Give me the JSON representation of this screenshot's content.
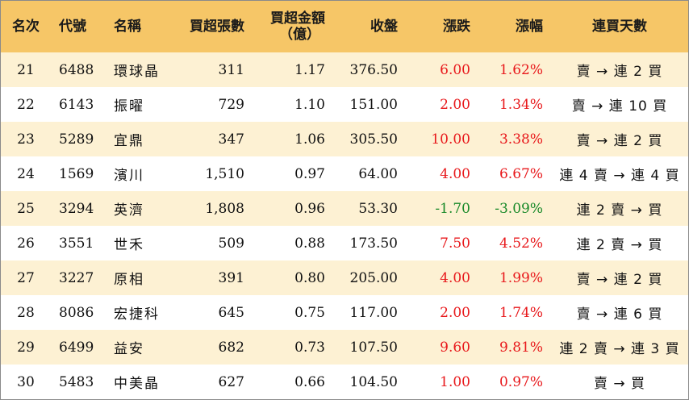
{
  "headers": {
    "rank": "名次",
    "code": "代號",
    "name": "名稱",
    "net_buy_lots": "買超張數",
    "net_buy_amount_line1": "買超金額",
    "net_buy_amount_line2": "（億）",
    "close": "收盤",
    "change": "漲跌",
    "change_pct": "漲幅",
    "consecutive_days": "連買天數"
  },
  "colors": {
    "header_bg": "#f6c667",
    "alt_row_bg": "#fdf1d3",
    "up": "#e8191c",
    "down": "#1a8a2a"
  },
  "rows": [
    {
      "rank": "21",
      "code": "6488",
      "name": "環球晶",
      "lots": "311",
      "amount": "1.17",
      "close": "376.50",
      "change": "6.00",
      "pct": "1.62%",
      "trend": "up",
      "days": "賣 → 連 2 買"
    },
    {
      "rank": "22",
      "code": "6143",
      "name": "振曜",
      "lots": "729",
      "amount": "1.10",
      "close": "151.00",
      "change": "2.00",
      "pct": "1.34%",
      "trend": "up",
      "days": "賣 → 連 10 買"
    },
    {
      "rank": "23",
      "code": "5289",
      "name": "宜鼎",
      "lots": "347",
      "amount": "1.06",
      "close": "305.50",
      "change": "10.00",
      "pct": "3.38%",
      "trend": "up",
      "days": "賣 → 連 2 買"
    },
    {
      "rank": "24",
      "code": "1569",
      "name": "濱川",
      "lots": "1,510",
      "amount": "0.97",
      "close": "64.00",
      "change": "4.00",
      "pct": "6.67%",
      "trend": "up",
      "days": "連 4 賣 → 連 4 買"
    },
    {
      "rank": "25",
      "code": "3294",
      "name": "英濟",
      "lots": "1,808",
      "amount": "0.96",
      "close": "53.30",
      "change": "-1.70",
      "pct": "-3.09%",
      "trend": "down",
      "days": "連 2 賣 → 買"
    },
    {
      "rank": "26",
      "code": "3551",
      "name": "世禾",
      "lots": "509",
      "amount": "0.88",
      "close": "173.50",
      "change": "7.50",
      "pct": "4.52%",
      "trend": "up",
      "days": "連 2 賣 → 買"
    },
    {
      "rank": "27",
      "code": "3227",
      "name": "原相",
      "lots": "391",
      "amount": "0.80",
      "close": "205.00",
      "change": "4.00",
      "pct": "1.99%",
      "trend": "up",
      "days": "賣 → 連 2 買"
    },
    {
      "rank": "28",
      "code": "8086",
      "name": "宏捷科",
      "lots": "645",
      "amount": "0.75",
      "close": "117.00",
      "change": "2.00",
      "pct": "1.74%",
      "trend": "up",
      "days": "賣 → 連 6 買"
    },
    {
      "rank": "29",
      "code": "6499",
      "name": "益安",
      "lots": "682",
      "amount": "0.73",
      "close": "107.50",
      "change": "9.60",
      "pct": "9.81%",
      "trend": "up",
      "days": "連 2 賣 → 連 3 買"
    },
    {
      "rank": "30",
      "code": "5483",
      "name": "中美晶",
      "lots": "627",
      "amount": "0.66",
      "close": "104.50",
      "change": "1.00",
      "pct": "0.97%",
      "trend": "up",
      "days": "賣 → 買"
    }
  ]
}
